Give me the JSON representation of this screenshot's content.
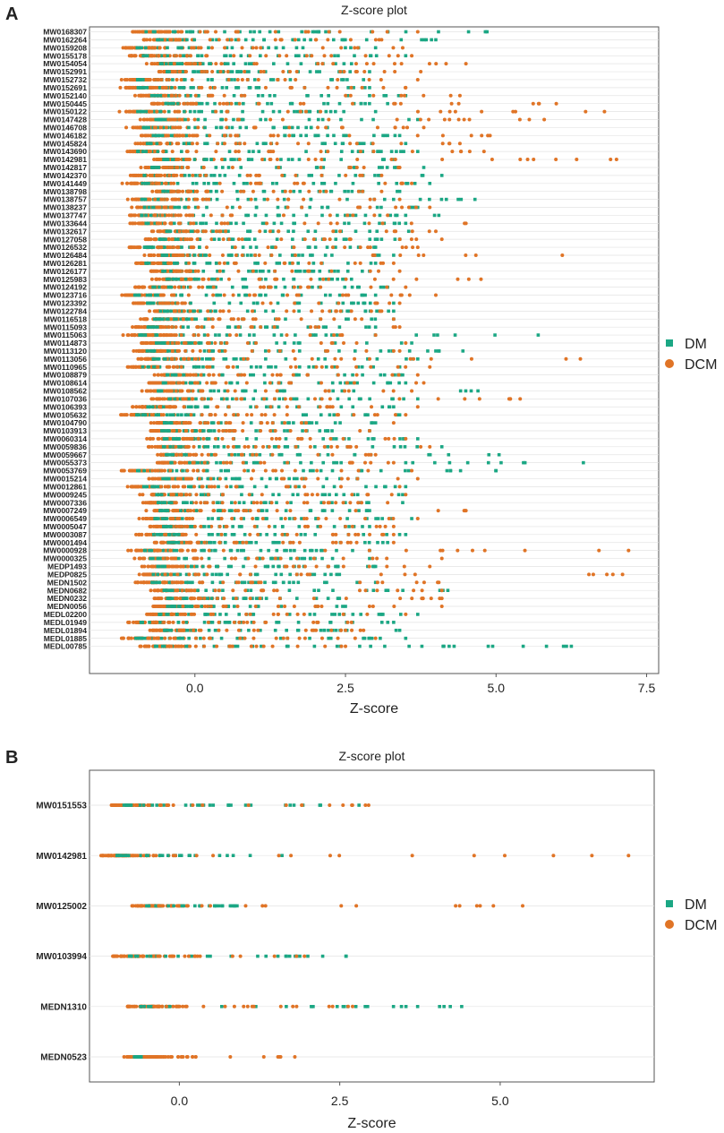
{
  "chart_data": [
    {
      "panel_letter": "A",
      "type": "scatter",
      "title": "Z-score plot",
      "xlabel": "Z-score",
      "ylabel": "",
      "xlim": [
        -1.75,
        7.7
      ],
      "x_ticks": [
        "0.0",
        "2.5",
        "5.0",
        "7.5"
      ],
      "grid": true,
      "legend_position": "right",
      "series": [
        {
          "name": "DM",
          "color": "#1ba784",
          "marker": "square"
        },
        {
          "name": "DCM",
          "color": "#e07426",
          "marker": "circle"
        }
      ],
      "categories": [
        "MW0168307",
        "MW0162264",
        "MW0159208",
        "MW0155178",
        "MW0154054",
        "MW0152991",
        "MW0152732",
        "MW0152691",
        "MW0152140",
        "MW0150445",
        "MW0150122",
        "MW0147428",
        "MW0146708",
        "MW0146182",
        "MW0145824",
        "MW0143690",
        "MW0142981",
        "MW0142817",
        "MW0142370",
        "MW0141449",
        "MW0138798",
        "MW0138757",
        "MW0138237",
        "MW0137747",
        "MW0133644",
        "MW0132617",
        "MW0127058",
        "MW0126532",
        "MW0126484",
        "MW0126281",
        "MW0126177",
        "MW0125983",
        "MW0124192",
        "MW0123716",
        "MW0123392",
        "MW0122784",
        "MW0116518",
        "MW0115093",
        "MW0115063",
        "MW0114873",
        "MW0113120",
        "MW0113056",
        "MW0110965",
        "MW0108879",
        "MW0108614",
        "MW0108562",
        "MW0107036",
        "MW0106393",
        "MW0105632",
        "MW0104790",
        "MW0103913",
        "MW0060314",
        "MW0059836",
        "MW0059667",
        "MW0055373",
        "MW0053769",
        "MW0015214",
        "MW0012861",
        "MW0009245",
        "MW0007336",
        "MW0007249",
        "MW0006549",
        "MW0005047",
        "MW0003087",
        "MW0001494",
        "MW0000928",
        "MW0000325",
        "MEDP1493",
        "MEDP0825",
        "MEDN1502",
        "MEDN0682",
        "MEDN0232",
        "MEDN0056",
        "MEDL02200",
        "MEDL01949",
        "MEDL01894",
        "MEDL01885",
        "MEDL00785"
      ],
      "max_dm": [
        4.85,
        4.0,
        3.0,
        3.5,
        2.6,
        2.9,
        2.8,
        2.9,
        3.5,
        3.2,
        3.0,
        3.7,
        2.2,
        3.4,
        3.5,
        3.7,
        3.3,
        3.8,
        4.1,
        3.9,
        3.4,
        4.65,
        3.7,
        4.05,
        3.5,
        3.55,
        3.4,
        3.0,
        3.3,
        3.0,
        2.9,
        2.6,
        3.2,
        3.0,
        3.3,
        3.3,
        3.3,
        3.0,
        5.7,
        3.6,
        4.45,
        3.7,
        3.4,
        3.45,
        3.5,
        4.7,
        3.7,
        3.3,
        3.4,
        3.0,
        2.9,
        3.7,
        4.1,
        5.05,
        6.45,
        5.0,
        2.7,
        3.5,
        3.45,
        3.45,
        2.9,
        3.6,
        2.9,
        3.5,
        3.2,
        2.9,
        2.9,
        3.0,
        2.4,
        3.0,
        4.2,
        2.4,
        2.5,
        3.7,
        3.3,
        3.4,
        3.5,
        6.25
      ],
      "max_dcm": [
        3.7,
        3.1,
        3.45,
        3.6,
        4.5,
        3.75,
        3.7,
        3.5,
        4.4,
        6.0,
        6.8,
        5.8,
        3.8,
        4.9,
        4.4,
        4.8,
        7.0,
        3.4,
        3.1,
        3.6,
        3.1,
        3.4,
        3.9,
        3.2,
        4.5,
        4.0,
        4.1,
        3.7,
        6.1,
        3.3,
        3.4,
        4.75,
        3.5,
        4.0,
        3.4,
        3.1,
        3.3,
        3.4,
        3.0,
        3.5,
        3.4,
        6.4,
        3.9,
        3.7,
        3.8,
        3.6,
        5.4,
        3.7,
        3.5,
        3.3,
        2.9,
        3.5,
        3.9,
        3.0,
        3.3,
        3.6,
        3.7,
        3.4,
        3.5,
        3.2,
        4.5,
        3.7,
        3.3,
        3.3,
        3.3,
        7.2,
        4.1,
        3.9,
        7.1,
        4.05,
        4.1,
        4.1,
        4.1,
        3.5,
        2.6,
        2.8,
        3.0,
        2.5
      ]
    },
    {
      "panel_letter": "B",
      "type": "scatter",
      "title": "Z-score plot",
      "xlabel": "Z-score",
      "ylabel": "",
      "xlim": [
        -1.4,
        7.4
      ],
      "x_ticks": [
        "0.0",
        "2.5",
        "5.0"
      ],
      "grid": true,
      "legend_position": "right",
      "series": [
        {
          "name": "DM",
          "color": "#1ba784",
          "marker": "square"
        },
        {
          "name": "DCM",
          "color": "#e07426",
          "marker": "circle"
        }
      ],
      "categories": [
        "MW0151553",
        "MW0142981",
        "MW0125002",
        "MW0103994",
        "MEDN1310",
        "MEDN0523"
      ],
      "max_dm": [
        2.8,
        1.6,
        0.9,
        2.6,
        4.4,
        -0.7
      ],
      "max_dcm": [
        2.95,
        7.0,
        5.35,
        1.95,
        2.7,
        1.8
      ]
    }
  ]
}
